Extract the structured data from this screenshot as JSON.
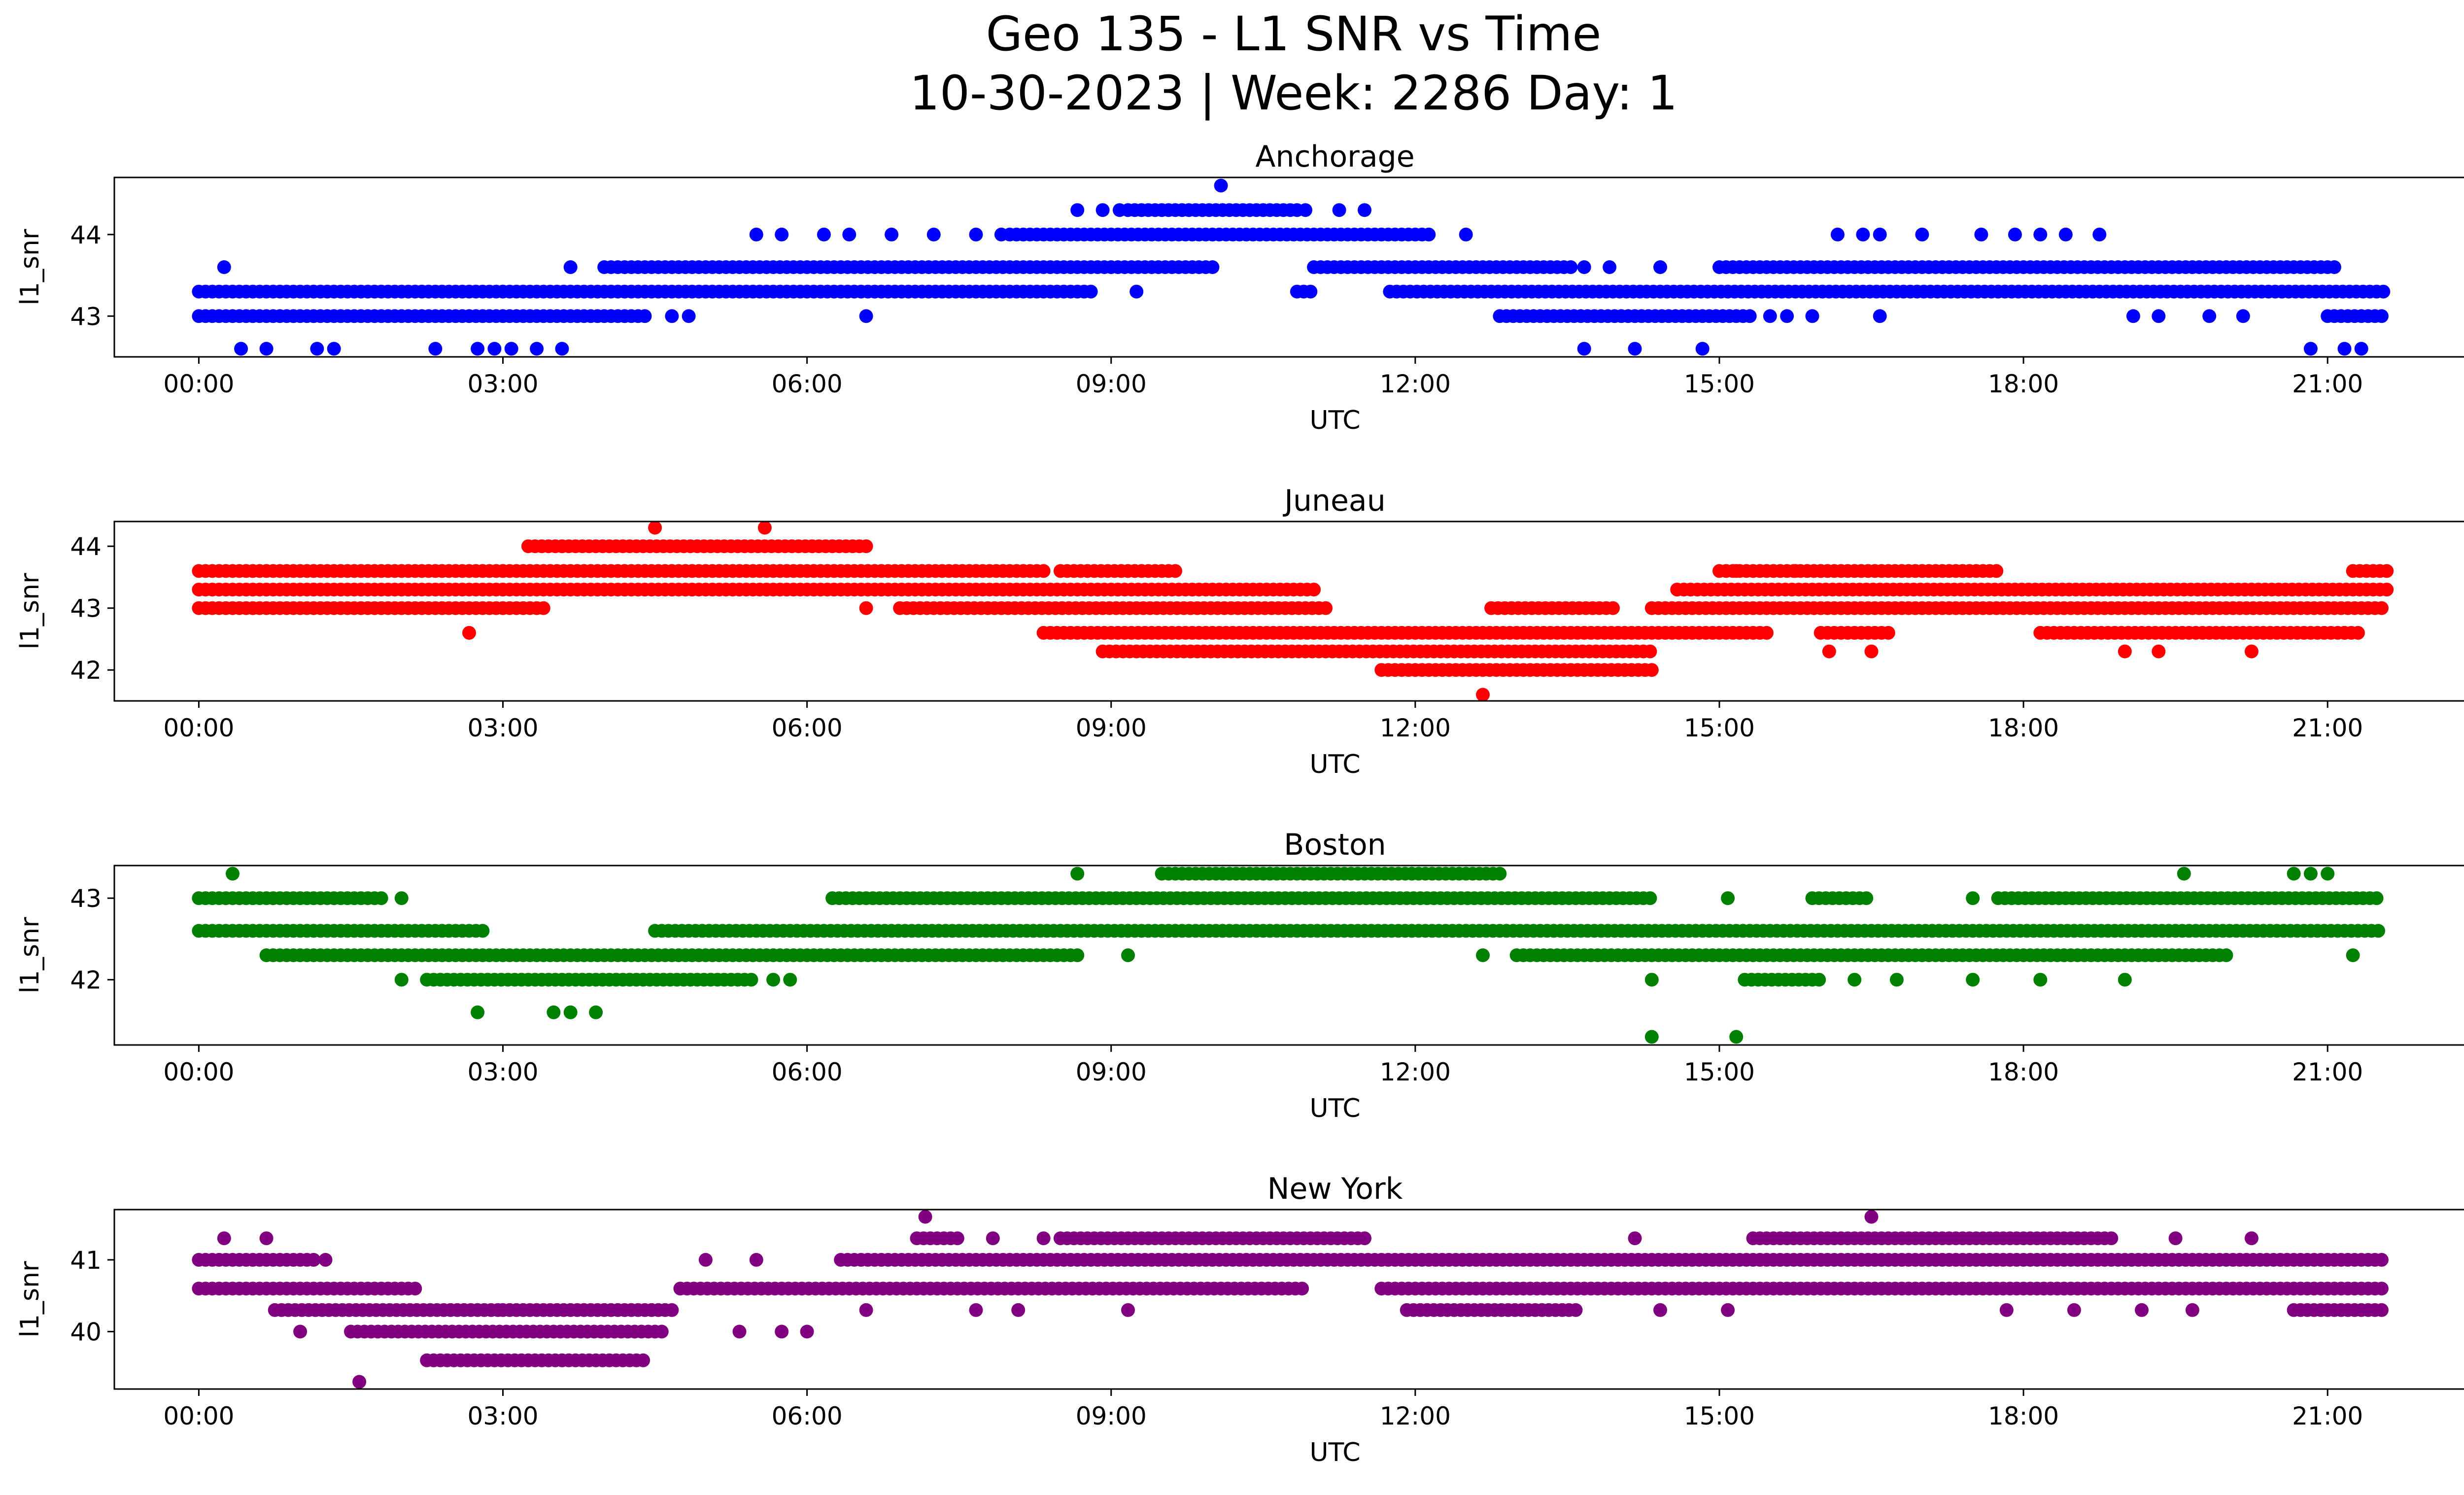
{
  "title_line1": "Geo 135 - L1 SNR vs Time",
  "title_line2": "10-30-2023 | Week: 2286 Day: 1",
  "chart_data": [
    {
      "type": "scatter",
      "title": "Anchorage",
      "xlabel": "UTC",
      "ylabel": "l1_snr",
      "color": "#0000ff",
      "xlim": [
        "-00:50",
        "23:15"
      ],
      "ylim": [
        42.5,
        44.7
      ],
      "yticks": [
        "43",
        "44"
      ],
      "ytick_values": [
        43,
        44
      ],
      "xticks": [
        "00:00",
        "03:00",
        "06:00",
        "09:00",
        "12:00",
        "15:00",
        "18:00",
        "21:00"
      ],
      "bands": [
        {
          "y": 43.3,
          "segments": [
            [
              "00:00",
              "08:50"
            ],
            [
              "10:50",
              "11:00"
            ],
            [
              "11:45",
              "21:35"
            ]
          ]
        },
        {
          "y": 43.0,
          "segments": [
            [
              "00:00",
              "04:25"
            ],
            [
              "12:50",
              "15:20"
            ],
            [
              "21:00",
              "21:35"
            ]
          ]
        },
        {
          "y": 43.6,
          "segments": [
            [
              "04:00",
              "10:00"
            ],
            [
              "11:00",
              "13:35"
            ],
            [
              "15:00",
              "21:05"
            ]
          ]
        },
        {
          "y": 44.0,
          "segments": [
            [
              "08:00",
              "12:10"
            ]
          ]
        },
        {
          "y": 44.3,
          "segments": [
            [
              "09:10",
              "10:50"
            ]
          ]
        }
      ],
      "points": [
        [
          "00:15",
          43.6
        ],
        [
          "00:25",
          42.6
        ],
        [
          "00:40",
          42.6
        ],
        [
          "01:10",
          42.6
        ],
        [
          "01:20",
          42.6
        ],
        [
          "02:20",
          42.6
        ],
        [
          "02:45",
          42.6
        ],
        [
          "02:55",
          42.6
        ],
        [
          "03:05",
          42.6
        ],
        [
          "03:20",
          42.6
        ],
        [
          "03:35",
          42.6
        ],
        [
          "03:40",
          43.6
        ],
        [
          "04:40",
          43.0
        ],
        [
          "04:50",
          43.0
        ],
        [
          "06:35",
          43.0
        ],
        [
          "05:30",
          44.0
        ],
        [
          "05:45",
          44.0
        ],
        [
          "06:10",
          44.0
        ],
        [
          "06:25",
          44.0
        ],
        [
          "06:50",
          44.0
        ],
        [
          "07:15",
          44.0
        ],
        [
          "07:40",
          44.0
        ],
        [
          "07:55",
          44.0
        ],
        [
          "08:40",
          44.3
        ],
        [
          "08:55",
          44.3
        ],
        [
          "09:05",
          44.3
        ],
        [
          "10:05",
          44.6
        ],
        [
          "09:15",
          43.3
        ],
        [
          "10:55",
          44.3
        ],
        [
          "11:15",
          44.3
        ],
        [
          "11:30",
          44.3
        ],
        [
          "12:30",
          44.0
        ],
        [
          "13:40",
          43.6
        ],
        [
          "13:55",
          43.6
        ],
        [
          "14:25",
          43.6
        ],
        [
          "13:40",
          42.6
        ],
        [
          "14:10",
          42.6
        ],
        [
          "14:50",
          42.6
        ],
        [
          "15:30",
          43.0
        ],
        [
          "15:40",
          43.0
        ],
        [
          "15:55",
          43.0
        ],
        [
          "16:10",
          44.0
        ],
        [
          "16:25",
          44.0
        ],
        [
          "16:35",
          44.0
        ],
        [
          "16:35",
          43.0
        ],
        [
          "17:00",
          44.0
        ],
        [
          "17:35",
          44.0
        ],
        [
          "17:55",
          44.0
        ],
        [
          "18:10",
          44.0
        ],
        [
          "18:25",
          44.0
        ],
        [
          "18:45",
          44.0
        ],
        [
          "19:05",
          43.0
        ],
        [
          "19:20",
          43.0
        ],
        [
          "19:50",
          43.0
        ],
        [
          "20:10",
          43.0
        ],
        [
          "20:50",
          42.6
        ],
        [
          "21:10",
          42.6
        ],
        [
          "21:20",
          42.6
        ]
      ]
    },
    {
      "type": "scatter",
      "title": "Juneau",
      "xlabel": "UTC",
      "ylabel": "l1_snr",
      "color": "#ff0000",
      "xlim": [
        "-00:50",
        "23:15"
      ],
      "ylim": [
        41.5,
        44.4
      ],
      "yticks": [
        "42",
        "43",
        "44"
      ],
      "ytick_values": [
        42,
        43,
        44
      ],
      "xticks": [
        "00:00",
        "03:00",
        "06:00",
        "09:00",
        "12:00",
        "15:00",
        "18:00",
        "21:00"
      ],
      "bands": [
        {
          "y": 43.6,
          "segments": [
            [
              "00:00",
              "08:20"
            ],
            [
              "08:30",
              "09:40"
            ],
            [
              "15:00",
              "17:45"
            ],
            [
              "21:15",
              "21:35"
            ]
          ]
        },
        {
          "y": 43.3,
          "segments": [
            [
              "00:00",
              "11:00"
            ],
            [
              "14:35",
              "21:35"
            ]
          ]
        },
        {
          "y": 43.0,
          "segments": [
            [
              "00:00",
              "03:25"
            ],
            [
              "06:55",
              "11:10"
            ],
            [
              "12:45",
              "14:00"
            ],
            [
              "14:20",
              "21:35"
            ]
          ]
        },
        {
          "y": 42.6,
          "segments": [
            [
              "08:20",
              "15:30"
            ],
            [
              "16:00",
              "16:40"
            ],
            [
              "18:10",
              "21:20"
            ]
          ]
        },
        {
          "y": 42.3,
          "segments": [
            [
              "08:55",
              "14:20"
            ]
          ]
        },
        {
          "y": 42.0,
          "segments": [
            [
              "11:40",
              "14:20"
            ]
          ]
        },
        {
          "y": 44.0,
          "segments": [
            [
              "03:15",
              "06:35"
            ]
          ]
        }
      ],
      "points": [
        [
          "02:40",
          42.6
        ],
        [
          "04:30",
          44.3
        ],
        [
          "05:35",
          44.3
        ],
        [
          "06:35",
          43.0
        ],
        [
          "12:40",
          41.6
        ],
        [
          "15:10",
          43.6
        ],
        [
          "15:45",
          43.6
        ],
        [
          "16:00",
          43.6
        ],
        [
          "16:05",
          42.3
        ],
        [
          "16:30",
          42.3
        ],
        [
          "19:00",
          42.3
        ],
        [
          "19:20",
          42.3
        ],
        [
          "20:15",
          42.3
        ],
        [
          "21:10",
          42.6
        ]
      ]
    },
    {
      "type": "scatter",
      "title": "Boston",
      "xlabel": "UTC",
      "ylabel": "l1_snr",
      "color": "#008000",
      "xlim": [
        "-00:50",
        "23:15"
      ],
      "ylim": [
        41.2,
        43.4
      ],
      "yticks": [
        "42",
        "43"
      ],
      "ytick_values": [
        42,
        43
      ],
      "xticks": [
        "00:00",
        "03:00",
        "06:00",
        "09:00",
        "12:00",
        "15:00",
        "18:00",
        "21:00"
      ],
      "bands": [
        {
          "y": 43.0,
          "segments": [
            [
              "00:00",
              "01:50"
            ],
            [
              "06:15",
              "14:20"
            ],
            [
              "15:55",
              "16:30"
            ],
            [
              "17:45",
              "21:30"
            ]
          ]
        },
        {
          "y": 42.6,
          "segments": [
            [
              "00:00",
              "02:50"
            ],
            [
              "04:30",
              "21:30"
            ]
          ]
        },
        {
          "y": 42.3,
          "segments": [
            [
              "00:40",
              "08:40"
            ],
            [
              "13:00",
              "20:00"
            ]
          ]
        },
        {
          "y": 42.0,
          "segments": [
            [
              "02:15",
              "05:30"
            ],
            [
              "15:15",
              "16:00"
            ]
          ]
        },
        {
          "y": 43.3,
          "segments": [
            [
              "09:30",
              "12:50"
            ]
          ]
        }
      ],
      "points": [
        [
          "00:20",
          43.3
        ],
        [
          "02:00",
          43.0
        ],
        [
          "02:00",
          42.0
        ],
        [
          "02:45",
          41.6
        ],
        [
          "03:30",
          41.6
        ],
        [
          "03:40",
          41.6
        ],
        [
          "03:55",
          41.6
        ],
        [
          "05:40",
          42.0
        ],
        [
          "05:50",
          42.0
        ],
        [
          "08:40",
          43.3
        ],
        [
          "09:10",
          42.3
        ],
        [
          "12:40",
          42.3
        ],
        [
          "14:20",
          42.0
        ],
        [
          "14:20",
          41.3
        ],
        [
          "15:05",
          43.0
        ],
        [
          "15:10",
          41.3
        ],
        [
          "16:20",
          42.0
        ],
        [
          "16:45",
          42.0
        ],
        [
          "17:30",
          42.0
        ],
        [
          "17:30",
          43.0
        ],
        [
          "18:10",
          42.0
        ],
        [
          "19:00",
          42.0
        ],
        [
          "19:35",
          43.3
        ],
        [
          "20:40",
          43.3
        ],
        [
          "20:50",
          43.3
        ],
        [
          "21:00",
          43.3
        ],
        [
          "21:15",
          42.3
        ]
      ]
    },
    {
      "type": "scatter",
      "title": "New York",
      "xlabel": "UTC",
      "ylabel": "l1_snr",
      "color": "#800080",
      "xlim": [
        "-00:50",
        "23:15"
      ],
      "ylim": [
        39.2,
        41.7
      ],
      "yticks": [
        "40",
        "41"
      ],
      "ytick_values": [
        40,
        41
      ],
      "xticks": [
        "00:00",
        "03:00",
        "06:00",
        "09:00",
        "12:00",
        "15:00",
        "18:00",
        "21:00"
      ],
      "bands": [
        {
          "y": 41.0,
          "segments": [
            [
              "00:00",
              "01:10"
            ],
            [
              "06:20",
              "21:35"
            ]
          ]
        },
        {
          "y": 40.6,
          "segments": [
            [
              "00:00",
              "02:10"
            ],
            [
              "04:45",
              "10:55"
            ],
            [
              "11:40",
              "21:35"
            ]
          ]
        },
        {
          "y": 40.3,
          "segments": [
            [
              "00:45",
              "03:00"
            ],
            [
              "03:00",
              "04:40"
            ],
            [
              "11:55",
              "13:35"
            ],
            [
              "20:40",
              "21:35"
            ]
          ]
        },
        {
          "y": 40.0,
          "segments": [
            [
              "01:30",
              "04:35"
            ]
          ]
        },
        {
          "y": 39.6,
          "segments": [
            [
              "02:15",
              "04:25"
            ]
          ]
        },
        {
          "y": 41.3,
          "segments": [
            [
              "07:05",
              "07:30"
            ],
            [
              "08:30",
              "11:30"
            ],
            [
              "15:20",
              "18:55"
            ]
          ]
        }
      ],
      "points": [
        [
          "00:15",
          41.3
        ],
        [
          "00:40",
          41.3
        ],
        [
          "01:00",
          40.0
        ],
        [
          "01:15",
          41.0
        ],
        [
          "01:35",
          39.3
        ],
        [
          "05:00",
          41.0
        ],
        [
          "05:20",
          40.0
        ],
        [
          "05:30",
          41.0
        ],
        [
          "05:45",
          40.0
        ],
        [
          "06:00",
          40.0
        ],
        [
          "06:35",
          40.3
        ],
        [
          "07:10",
          41.6
        ],
        [
          "07:40",
          40.3
        ],
        [
          "07:50",
          41.3
        ],
        [
          "08:05",
          40.3
        ],
        [
          "08:20",
          41.3
        ],
        [
          "09:10",
          40.3
        ],
        [
          "14:10",
          41.3
        ],
        [
          "14:25",
          40.3
        ],
        [
          "15:05",
          40.3
        ],
        [
          "16:30",
          41.6
        ],
        [
          "17:50",
          40.3
        ],
        [
          "18:30",
          40.3
        ],
        [
          "19:10",
          40.3
        ],
        [
          "19:30",
          41.3
        ],
        [
          "19:40",
          40.3
        ],
        [
          "20:15",
          41.3
        ]
      ]
    }
  ]
}
